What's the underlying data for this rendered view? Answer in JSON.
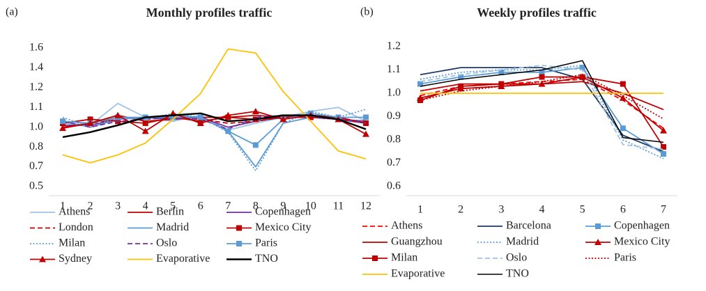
{
  "chart_data": [
    {
      "type": "line",
      "panel": "(a)",
      "title": "Monthly profiles traffic",
      "yscale": "ticks",
      "x": [
        1,
        2,
        3,
        4,
        5,
        6,
        7,
        8,
        9,
        10,
        11,
        12
      ],
      "xlim": [
        1,
        12
      ],
      "ylim": [
        0.5,
        1.6
      ],
      "yticks": [
        0.5,
        0.7,
        0.8,
        {
          "value": 1.0,
          "label": "1.0"
        },
        1.1,
        1.2,
        1.4,
        1.6
      ],
      "series": [
        {
          "name": "Athens",
          "color": "#9dc3e6",
          "values": [
            1.02,
            1.01,
            1.12,
            1.05,
            1.03,
            1.06,
            0.97,
            1.02,
            1.05,
            1.08,
            1.1,
            1.03
          ]
        },
        {
          "name": "Berlin",
          "color": "#c00000",
          "values": [
            1.0,
            1.02,
            1.06,
            1.03,
            1.04,
            1.05,
            1.05,
            1.06,
            1.05,
            1.06,
            1.05,
            1.02
          ]
        },
        {
          "name": "Copenhagen",
          "color": "#7030a0",
          "values": [
            1.01,
            1.01,
            1.04,
            1.05,
            1.04,
            1.05,
            1.0,
            1.03,
            1.05,
            1.05,
            1.04,
            1.03
          ]
        },
        {
          "name": "London",
          "color": "#c00000",
          "dash": "dash",
          "values": [
            1.0,
            1.02,
            1.04,
            1.05,
            1.05,
            1.04,
            1.02,
            1.03,
            1.05,
            1.05,
            1.05,
            1.02
          ]
        },
        {
          "name": "Madrid",
          "color": "#5b9bd5",
          "values": [
            1.03,
            1.0,
            1.04,
            1.05,
            1.06,
            1.05,
            0.96,
            0.7,
            1.02,
            1.05,
            1.04,
            1.02
          ]
        },
        {
          "name": "Mexico City",
          "color": "#c00000",
          "marker": "square",
          "values": [
            1.02,
            1.04,
            1.03,
            1.02,
            1.05,
            1.03,
            1.05,
            1.04,
            1.05,
            1.05,
            1.04,
            1.02
          ]
        },
        {
          "name": "Milan",
          "color": "#5b9bd5",
          "dash": "dot",
          "values": [
            1.05,
            1.0,
            1.05,
            1.04,
            1.07,
            1.05,
            0.95,
            0.66,
            1.02,
            1.08,
            1.05,
            1.09
          ]
        },
        {
          "name": "Oslo",
          "color": "#7030a0",
          "dash": "dash",
          "values": [
            1.03,
            1.0,
            1.03,
            1.04,
            1.05,
            1.04,
            0.98,
            1.05,
            1.06,
            1.05,
            1.04,
            1.02
          ]
        },
        {
          "name": "Paris",
          "color": "#5b9bd5",
          "marker": "square",
          "values": [
            1.03,
            1.02,
            1.05,
            1.05,
            1.05,
            1.05,
            0.96,
            0.82,
            1.04,
            1.07,
            1.05,
            1.05
          ]
        },
        {
          "name": "Sydney",
          "color": "#c00000",
          "marker": "triangle",
          "values": [
            0.99,
            1.02,
            1.06,
            0.96,
            1.07,
            1.02,
            1.06,
            1.08,
            1.04,
            1.06,
            1.04,
            0.93
          ]
        },
        {
          "name": "Evaporative",
          "color": "#ffc000",
          "values": [
            0.76,
            0.72,
            0.76,
            0.84,
            1.04,
            1.17,
            1.59,
            1.55,
            1.18,
            1.03,
            0.78,
            0.74
          ]
        },
        {
          "name": "TNO",
          "color": "#000000",
          "width": 2.5,
          "values": [
            0.9,
            0.95,
            1.01,
            1.05,
            1.06,
            1.07,
            1.03,
            1.04,
            1.06,
            1.06,
            1.04,
            0.98
          ]
        }
      ]
    },
    {
      "type": "line",
      "panel": "(b)",
      "title": "Weekly profiles traffic",
      "x": [
        1,
        2,
        3,
        4,
        5,
        6,
        7
      ],
      "xlim": [
        1,
        7
      ],
      "ylim": [
        0.6,
        1.2
      ],
      "yticks": [
        0.6,
        0.7,
        0.8,
        0.9,
        {
          "value": 1.0,
          "label": "1.0"
        },
        1.1,
        1.2
      ],
      "series": [
        {
          "name": "Athens",
          "color": "#ff0000",
          "dash": "dash",
          "values": [
            0.99,
            1.03,
            1.04,
            1.05,
            1.06,
            0.97,
            0.85
          ]
        },
        {
          "name": "Barcelona",
          "color": "#203864",
          "values": [
            1.08,
            1.11,
            1.11,
            1.11,
            1.06,
            0.82,
            0.75
          ]
        },
        {
          "name": "Copenhagen",
          "color": "#5b9bd5",
          "marker": "square",
          "values": [
            1.04,
            1.07,
            1.09,
            1.09,
            1.11,
            0.85,
            0.74
          ]
        },
        {
          "name": "Guangzhou",
          "color": "#c00000",
          "values": [
            1.01,
            1.04,
            1.04,
            1.04,
            1.05,
            1.0,
            0.93
          ]
        },
        {
          "name": "Madrid",
          "color": "#5b9bd5",
          "dash": "dot",
          "values": [
            1.06,
            1.09,
            1.1,
            1.1,
            1.12,
            0.8,
            0.72
          ]
        },
        {
          "name": "Mexico City",
          "color": "#c00000",
          "marker": "triangle",
          "values": [
            0.98,
            1.02,
            1.03,
            1.04,
            1.07,
            0.98,
            0.84
          ]
        },
        {
          "name": "Milan",
          "color": "#c00000",
          "marker": "square",
          "values": [
            0.97,
            1.03,
            1.04,
            1.07,
            1.07,
            1.04,
            0.77
          ]
        },
        {
          "name": "Oslo",
          "color": "#9dc3e6",
          "dash": "dash",
          "values": [
            1.05,
            1.08,
            1.1,
            1.12,
            1.1,
            0.78,
            0.76
          ]
        },
        {
          "name": "Paris",
          "color": "#c00000",
          "dash": "dot",
          "values": [
            0.97,
            1.01,
            1.03,
            1.05,
            1.08,
            0.99,
            0.89
          ]
        },
        {
          "name": "Evaporative",
          "color": "#ffc000",
          "values": [
            1,
            1,
            1,
            1,
            1,
            1,
            1
          ]
        },
        {
          "name": "TNO",
          "color": "#000000",
          "width": 1.5,
          "values": [
            1.03,
            1.06,
            1.08,
            1.1,
            1.14,
            0.81,
            0.79
          ]
        }
      ]
    }
  ]
}
